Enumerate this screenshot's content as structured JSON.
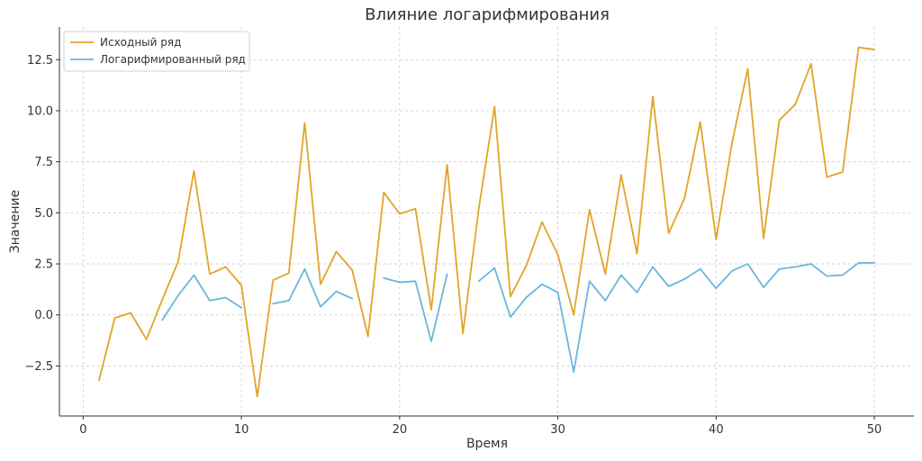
{
  "chart_data": {
    "type": "line",
    "title": "Влияние логарифмирования",
    "xlabel": "Время",
    "ylabel": "Значение",
    "xlim": [
      -1.5,
      52.5
    ],
    "ylim": [
      -4.95,
      14.1
    ],
    "xticks": [
      0,
      10,
      20,
      30,
      40,
      50
    ],
    "xtick_labels": [
      "0",
      "10",
      "20",
      "30",
      "40",
      "50"
    ],
    "yticks": [
      -2.5,
      0.0,
      2.5,
      5.0,
      7.5,
      10.0,
      12.5
    ],
    "ytick_labels": [
      "−2.5",
      "0.0",
      "2.5",
      "5.0",
      "7.5",
      "10.0",
      "12.5"
    ],
    "grid": true,
    "legend_position": "top-left",
    "x": [
      1,
      2,
      3,
      4,
      5,
      6,
      7,
      8,
      9,
      10,
      11,
      12,
      13,
      14,
      15,
      16,
      17,
      18,
      19,
      20,
      21,
      22,
      23,
      24,
      25,
      26,
      27,
      28,
      29,
      30,
      31,
      32,
      33,
      34,
      35,
      36,
      37,
      38,
      39,
      40,
      41,
      42,
      43,
      44,
      45,
      46,
      47,
      48,
      49,
      50
    ],
    "series": [
      {
        "name": "Исходный ряд",
        "color": "#e0a526",
        "values": [
          -3.2,
          -0.15,
          0.1,
          -1.2,
          0.75,
          2.6,
          7.05,
          2.0,
          2.35,
          1.45,
          -4.0,
          1.7,
          2.05,
          9.4,
          1.5,
          3.1,
          2.2,
          -1.05,
          6.0,
          4.95,
          5.2,
          0.25,
          7.35,
          -0.9,
          5.2,
          10.2,
          0.9,
          2.4,
          4.55,
          2.95,
          0.0,
          5.15,
          2.0,
          6.85,
          3.0,
          10.7,
          4.0,
          5.7,
          9.45,
          3.7,
          8.4,
          12.05,
          3.75,
          9.55,
          10.3,
          12.3,
          6.75,
          7.0,
          13.1,
          13.0
        ]
      },
      {
        "name": "Логарифмированный ряд",
        "color": "#6cb5dc",
        "values": [
          null,
          null,
          null,
          null,
          -0.25,
          0.95,
          1.95,
          0.7,
          0.85,
          0.35,
          null,
          0.55,
          0.7,
          2.25,
          0.4,
          1.15,
          0.8,
          null,
          1.8,
          1.6,
          1.65,
          -1.3,
          2.0,
          null,
          1.65,
          2.3,
          -0.1,
          0.85,
          1.5,
          1.1,
          -2.8,
          1.65,
          0.7,
          1.95,
          1.1,
          2.35,
          1.4,
          1.75,
          2.25,
          1.3,
          2.15,
          2.5,
          1.35,
          2.25,
          2.35,
          2.5,
          1.9,
          1.95,
          2.55,
          2.55
        ]
      }
    ]
  }
}
